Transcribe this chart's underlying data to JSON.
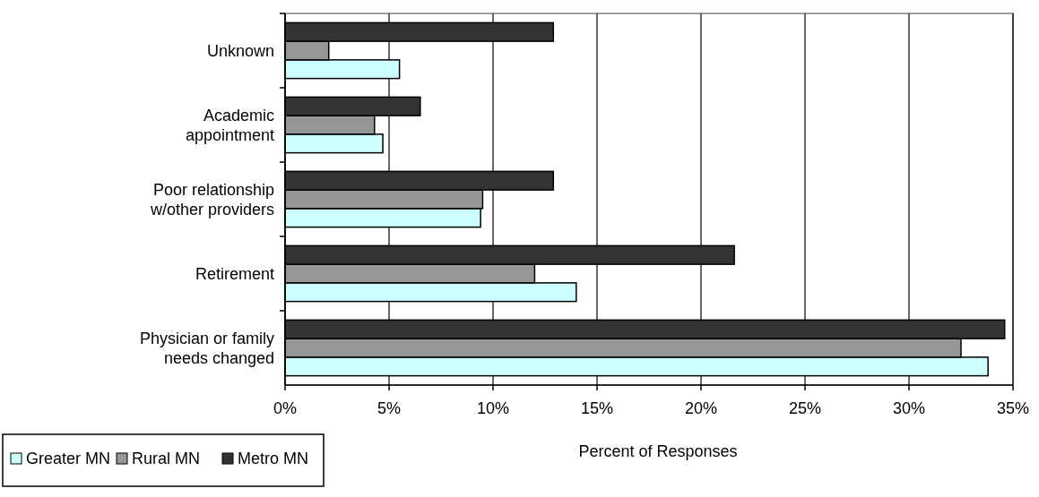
{
  "chart_data": {
    "type": "bar",
    "orientation": "horizontal",
    "xlabel": "Percent of Responses",
    "categories": [
      "Unknown",
      "Academic appointment",
      "Poor relationship w/other providers",
      "Retirement",
      "Physician or family needs changed"
    ],
    "series": [
      {
        "name": "Greater MN",
        "color": "#ccffff",
        "values": [
          5.5,
          4.7,
          9.4,
          14.0,
          33.8
        ]
      },
      {
        "name": "Rural MN",
        "color": "#969696",
        "values": [
          2.1,
          4.3,
          9.5,
          12.0,
          32.5
        ]
      },
      {
        "name": "Metro MN",
        "color": "#333333",
        "values": [
          12.9,
          6.5,
          12.9,
          21.6,
          34.6
        ]
      }
    ],
    "xlim": [
      0,
      35
    ],
    "xticks": [
      {
        "value": 0,
        "label": "0%"
      },
      {
        "value": 5,
        "label": "5%"
      },
      {
        "value": 10,
        "label": "10%"
      },
      {
        "value": 15,
        "label": "15%"
      },
      {
        "value": 20,
        "label": "20%"
      },
      {
        "value": 25,
        "label": "25%"
      },
      {
        "value": 30,
        "label": "30%"
      },
      {
        "value": 35,
        "label": "35%"
      }
    ],
    "grid": "x",
    "legend": "bottom left"
  }
}
